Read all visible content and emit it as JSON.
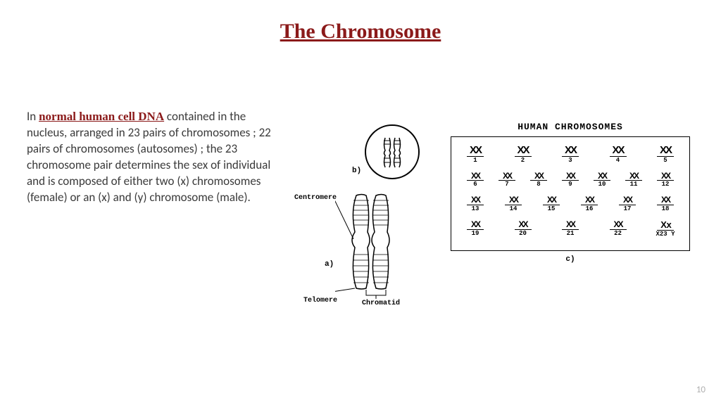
{
  "title": {
    "text": "The Chromosome",
    "color": "#8b1a1a"
  },
  "body": {
    "intro": "In ",
    "emph": "normal human cell DNA",
    "emph_color": "#8b1a1a",
    "rest": " contained in the nucleus, arranged in 23 pairs of chromosomes ; 22 pairs of chromosomes (autosomes) ; the 23 chromosome pair determines the sex of individual and is composed of either two (x) chromosomes (female) or an (x) and (y) chromosome (male).",
    "text_color": "#3a3a3a"
  },
  "figure": {
    "karyotype_title": "HUMAN CHROMOSOMES",
    "labels": {
      "a": "a)",
      "b": "b)",
      "c": "c)"
    },
    "parts": {
      "centromere": "Centromere",
      "telomere": "Telomere",
      "chromatid": "Chromatid"
    },
    "rows": [
      {
        "count": 5,
        "start": 1,
        "class": "row1"
      },
      {
        "count": 7,
        "start": 6,
        "class": "row2"
      },
      {
        "count": 6,
        "start": 13,
        "class": "row3"
      },
      {
        "count": 5,
        "start": 19,
        "class": "row4",
        "sex": true
      }
    ],
    "sex_label": "X23 Y",
    "glyph": "XX"
  },
  "page_number": "10",
  "colors": {
    "background": "#ffffff",
    "ink": "#000000"
  }
}
